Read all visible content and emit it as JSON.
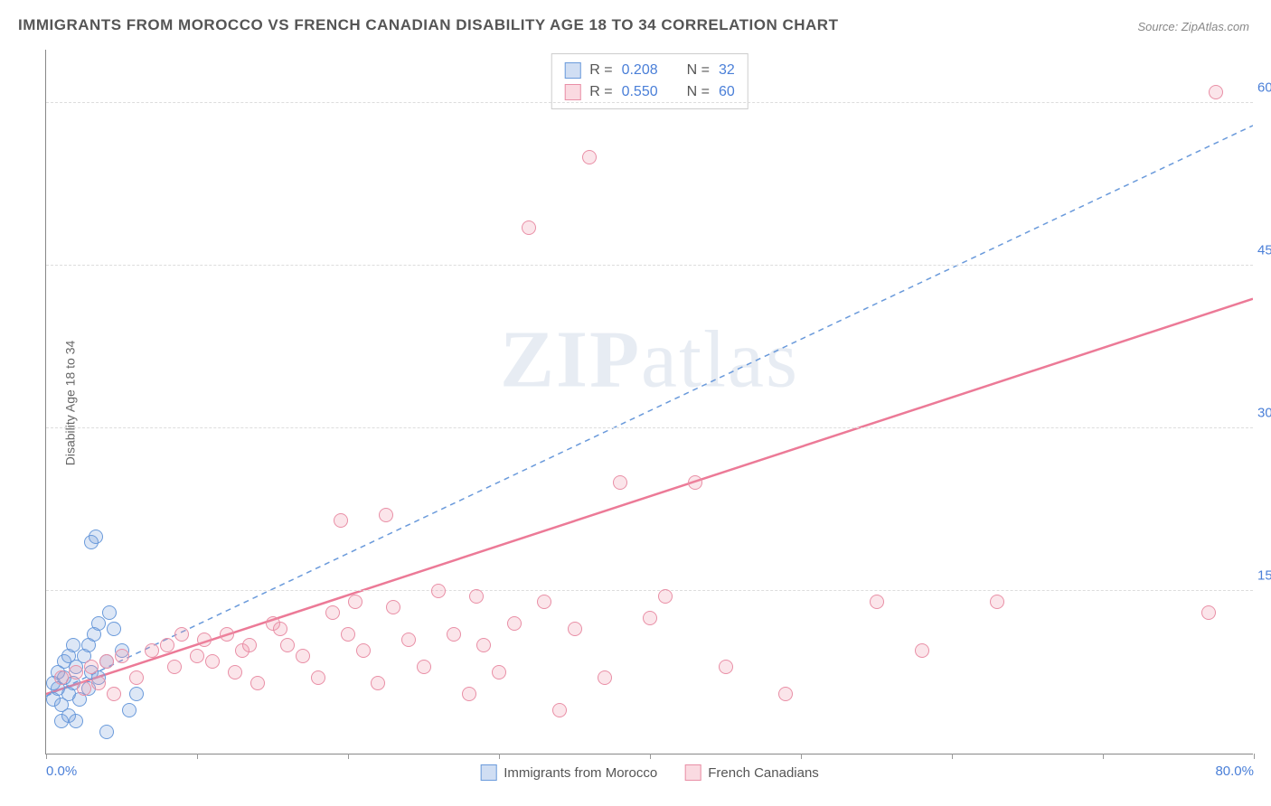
{
  "title": "IMMIGRANTS FROM MOROCCO VS FRENCH CANADIAN DISABILITY AGE 18 TO 34 CORRELATION CHART",
  "source": "Source: ZipAtlas.com",
  "ylabel": "Disability Age 18 to 34",
  "watermark_bold": "ZIP",
  "watermark_light": "atlas",
  "chart": {
    "type": "scatter",
    "background_color": "#ffffff",
    "grid_color": "#dddddd",
    "axis_color": "#888888",
    "text_color": "#555555",
    "tick_label_color": "#4a7fd8",
    "title_fontsize": 17,
    "label_fontsize": 14,
    "tick_fontsize": 15,
    "marker_size": 16,
    "xlim": [
      0,
      80
    ],
    "ylim": [
      0,
      65
    ],
    "xtick_positions": [
      0,
      10,
      20,
      30,
      40,
      50,
      60,
      70,
      80
    ],
    "xtick_labels": [
      "0.0%",
      "",
      "",
      "",
      "",
      "",
      "",
      "",
      "80.0%"
    ],
    "ytick_positions": [
      15,
      30,
      45,
      60
    ],
    "ytick_labels": [
      "15.0%",
      "30.0%",
      "45.0%",
      "60.0%"
    ],
    "series": [
      {
        "name": "Immigrants from Morocco",
        "color_fill": "rgba(120,160,220,0.25)",
        "color_stroke": "#6a9adb",
        "R": "0.208",
        "N": "32",
        "trend": {
          "x1": 0,
          "y1": 5.3,
          "x2": 80,
          "y2": 58,
          "dash": "6,5",
          "width": 1.5,
          "color": "#6a9adb"
        },
        "points": [
          [
            0.5,
            5.0
          ],
          [
            0.8,
            6.0
          ],
          [
            1.0,
            4.5
          ],
          [
            1.2,
            7.0
          ],
          [
            1.5,
            5.5
          ],
          [
            1.8,
            6.5
          ],
          [
            2.0,
            8.0
          ],
          [
            2.2,
            5.0
          ],
          [
            2.5,
            9.0
          ],
          [
            2.8,
            10.0
          ],
          [
            3.0,
            7.5
          ],
          [
            3.2,
            11.0
          ],
          [
            3.5,
            12.0
          ],
          [
            3.0,
            19.5
          ],
          [
            3.3,
            20.0
          ],
          [
            4.0,
            8.5
          ],
          [
            4.5,
            11.5
          ],
          [
            5.0,
            9.5
          ],
          [
            5.5,
            4.0
          ],
          [
            6.0,
            5.5
          ],
          [
            4.0,
            2.0
          ],
          [
            1.0,
            3.0
          ],
          [
            1.5,
            3.5
          ],
          [
            2.0,
            3.0
          ],
          [
            0.5,
            6.5
          ],
          [
            0.8,
            7.5
          ],
          [
            1.2,
            8.5
          ],
          [
            1.5,
            9.0
          ],
          [
            1.8,
            10.0
          ],
          [
            2.8,
            6.0
          ],
          [
            3.5,
            7.0
          ],
          [
            4.2,
            13.0
          ]
        ]
      },
      {
        "name": "French Canadians",
        "color_fill": "rgba(240,150,170,0.25)",
        "color_stroke": "#e98fa6",
        "R": "0.550",
        "N": "60",
        "trend": {
          "x1": 0,
          "y1": 5.5,
          "x2": 80,
          "y2": 42,
          "dash": "none",
          "width": 2.5,
          "color": "#ec7a97"
        },
        "points": [
          [
            1.0,
            7.0
          ],
          [
            2.0,
            7.5
          ],
          [
            3.0,
            8.0
          ],
          [
            4.0,
            8.5
          ],
          [
            5.0,
            9.0
          ],
          [
            6.0,
            7.0
          ],
          [
            7.0,
            9.5
          ],
          [
            8.0,
            10.0
          ],
          [
            8.5,
            8.0
          ],
          [
            9.0,
            11.0
          ],
          [
            10.0,
            9.0
          ],
          [
            10.5,
            10.5
          ],
          [
            11.0,
            8.5
          ],
          [
            12.0,
            11.0
          ],
          [
            12.5,
            7.5
          ],
          [
            13.0,
            9.5
          ],
          [
            13.5,
            10.0
          ],
          [
            14.0,
            6.5
          ],
          [
            15.0,
            12.0
          ],
          [
            15.5,
            11.5
          ],
          [
            16.0,
            10.0
          ],
          [
            17.0,
            9.0
          ],
          [
            18.0,
            7.0
          ],
          [
            19.0,
            13.0
          ],
          [
            19.5,
            21.5
          ],
          [
            20.0,
            11.0
          ],
          [
            20.5,
            14.0
          ],
          [
            21.0,
            9.5
          ],
          [
            22.0,
            6.5
          ],
          [
            22.5,
            22.0
          ],
          [
            23.0,
            13.5
          ],
          [
            24.0,
            10.5
          ],
          [
            25.0,
            8.0
          ],
          [
            26.0,
            15.0
          ],
          [
            27.0,
            11.0
          ],
          [
            28.0,
            5.5
          ],
          [
            28.5,
            14.5
          ],
          [
            29.0,
            10.0
          ],
          [
            30.0,
            7.5
          ],
          [
            31.0,
            12.0
          ],
          [
            32.0,
            48.5
          ],
          [
            33.0,
            14.0
          ],
          [
            34.0,
            4.0
          ],
          [
            35.0,
            11.5
          ],
          [
            36.0,
            55.0
          ],
          [
            37.0,
            7.0
          ],
          [
            38.0,
            25.0
          ],
          [
            40.0,
            12.5
          ],
          [
            41.0,
            14.5
          ],
          [
            43.0,
            25.0
          ],
          [
            45.0,
            8.0
          ],
          [
            49.0,
            5.5
          ],
          [
            55.0,
            14.0
          ],
          [
            58.0,
            9.5
          ],
          [
            63.0,
            14.0
          ],
          [
            77.0,
            13.0
          ],
          [
            77.5,
            61.0
          ],
          [
            2.5,
            6.0
          ],
          [
            3.5,
            6.5
          ],
          [
            4.5,
            5.5
          ]
        ]
      }
    ],
    "legend_top": [
      {
        "swatch": "blue",
        "R_label": "R =",
        "R_val": "0.208",
        "N_label": "N =",
        "N_val": "32"
      },
      {
        "swatch": "pink",
        "R_label": "R =",
        "R_val": "0.550",
        "N_label": "N =",
        "N_val": "60"
      }
    ],
    "legend_bottom": [
      {
        "swatch": "blue",
        "label": "Immigrants from Morocco"
      },
      {
        "swatch": "pink",
        "label": "French Canadians"
      }
    ]
  }
}
